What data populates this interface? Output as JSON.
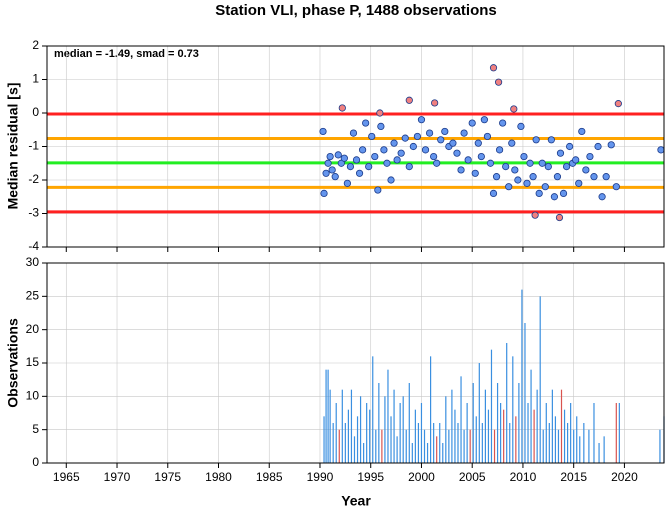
{
  "chart_data": [
    {
      "type": "scatter",
      "title": "Station VLI, phase P, 1488 observations",
      "ylabel": "Median residual [s]",
      "annotation": "median = -1.49, smad = 0.73",
      "xlim": [
        1963.1,
        2023.9
      ],
      "ylim": [
        -4,
        2
      ],
      "yticks": [
        -4,
        -3,
        -2,
        -1,
        0,
        1,
        2
      ],
      "grid": true,
      "hlines": [
        {
          "value": -0.03,
          "color": "#ff2020"
        },
        {
          "value": -0.76,
          "color": "#ffa500"
        },
        {
          "value": -1.49,
          "color": "#22ee22"
        },
        {
          "value": -2.22,
          "color": "#ffa500"
        },
        {
          "value": -2.95,
          "color": "#ff2020"
        }
      ],
      "series": [
        {
          "color": "#6495ed",
          "x": [
            1990.3,
            1990.4,
            1990.6,
            1990.8,
            1991.0,
            1991.2,
            1991.5,
            1991.8,
            1992.1,
            1992.4,
            1992.7,
            1993.0,
            1993.3,
            1993.6,
            1993.9,
            1994.2,
            1994.5,
            1994.8,
            1995.1,
            1995.4,
            1995.7,
            1996.0,
            1996.3,
            1996.6,
            1997.0,
            1997.3,
            1997.6,
            1998.0,
            1998.4,
            1998.8,
            1999.2,
            1999.6,
            2000.0,
            2000.4,
            2000.8,
            2001.2,
            2001.5,
            2001.9,
            2002.3,
            2002.7,
            2003.1,
            2003.5,
            2003.9,
            2004.2,
            2004.6,
            2005.0,
            2005.3,
            2005.6,
            2005.9,
            2006.2,
            2006.5,
            2006.8,
            2007.1,
            2007.4,
            2007.7,
            2008.0,
            2008.3,
            2008.6,
            2008.9,
            2009.2,
            2009.5,
            2009.8,
            2010.1,
            2010.4,
            2010.7,
            2011.0,
            2011.3,
            2011.6,
            2011.9,
            2012.2,
            2012.5,
            2012.8,
            2013.1,
            2013.4,
            2013.7,
            2014.0,
            2014.3,
            2014.6,
            2014.9,
            2015.2,
            2015.5,
            2015.8,
            2016.2,
            2016.6,
            2017.0,
            2017.4,
            2017.8,
            2018.2,
            2018.7,
            2019.2,
            2023.6
          ],
          "values": [
            -0.55,
            -2.4,
            -1.8,
            -1.5,
            -1.3,
            -1.7,
            -1.9,
            -1.25,
            -1.5,
            -1.35,
            -2.1,
            -1.6,
            -0.6,
            -1.4,
            -1.8,
            -1.1,
            -0.3,
            -1.6,
            -0.7,
            -1.3,
            -2.3,
            -0.4,
            -1.1,
            -1.5,
            -2.0,
            -0.9,
            -1.4,
            -1.2,
            -0.75,
            -1.6,
            -1.0,
            -0.7,
            -0.2,
            -1.1,
            -0.6,
            -1.3,
            -1.5,
            -0.8,
            -0.55,
            -1.0,
            -0.9,
            -1.2,
            -1.7,
            -0.6,
            -1.4,
            -0.3,
            -1.8,
            -0.9,
            -1.3,
            -0.2,
            -0.7,
            -1.5,
            -2.4,
            -1.9,
            -1.1,
            -0.3,
            -1.6,
            -2.2,
            -0.9,
            -1.7,
            -2.0,
            -0.4,
            -1.3,
            -2.1,
            -1.5,
            -1.9,
            -0.8,
            -2.4,
            -1.5,
            -2.2,
            -1.6,
            -0.8,
            -2.5,
            -1.9,
            -1.2,
            -2.4,
            -1.6,
            -1.0,
            -1.5,
            -1.4,
            -2.1,
            -0.55,
            -1.7,
            -1.3,
            -1.9,
            -1.0,
            -2.5,
            -1.9,
            -0.95,
            -2.2,
            -1.1
          ]
        },
        {
          "color": "#f08080",
          "x": [
            1992.2,
            1995.9,
            1998.8,
            2001.3,
            2007.1,
            2007.6,
            2009.1,
            2019.4,
            2011.2,
            2013.6
          ],
          "values": [
            0.15,
            0.0,
            0.38,
            0.3,
            1.35,
            0.92,
            0.12,
            0.28,
            -3.05,
            -3.12
          ]
        }
      ]
    },
    {
      "type": "bar",
      "ylabel": "Observations",
      "xlabel": "Year",
      "xlim": [
        1963.1,
        2023.9
      ],
      "xticks": [
        1965,
        1970,
        1975,
        1980,
        1985,
        1990,
        1995,
        2000,
        2005,
        2010,
        2015,
        2020
      ],
      "ylim": [
        0,
        30
      ],
      "yticks": [
        0,
        5,
        10,
        15,
        20,
        25,
        30
      ],
      "grid": true,
      "series": [
        {
          "color": "#3a8fe0",
          "x": [
            1990.4,
            1990.6,
            1990.8,
            1991.0,
            1991.3,
            1991.6,
            1992.2,
            1992.5,
            1992.8,
            1993.1,
            1993.4,
            1993.7,
            1994.0,
            1994.3,
            1994.6,
            1994.9,
            1995.2,
            1995.5,
            1995.8,
            1996.4,
            1996.7,
            1997.0,
            1997.3,
            1997.6,
            1997.9,
            1998.2,
            1998.5,
            1998.8,
            1999.1,
            1999.4,
            1999.7,
            2000.0,
            2000.3,
            2000.6,
            2000.9,
            2001.2,
            2001.8,
            2002.1,
            2002.4,
            2002.7,
            2003.0,
            2003.3,
            2003.6,
            2003.9,
            2004.2,
            2004.5,
            2005.1,
            2005.4,
            2005.7,
            2006.0,
            2006.3,
            2006.6,
            2006.9,
            2007.5,
            2007.8,
            2008.4,
            2008.7,
            2009.0,
            2009.6,
            2009.9,
            2010.2,
            2010.5,
            2010.8,
            2011.4,
            2011.7,
            2012.0,
            2012.3,
            2012.6,
            2012.9,
            2013.2,
            2013.5,
            2014.1,
            2014.4,
            2014.7,
            2015.0,
            2015.3,
            2015.6,
            2016.0,
            2016.5,
            2017.0,
            2017.5,
            2018.0,
            2019.5,
            2023.5,
            2023.9
          ],
          "values": [
            7,
            14,
            14,
            11,
            6,
            9,
            11,
            6,
            8,
            11,
            4,
            7,
            10,
            3,
            9,
            8,
            16,
            5,
            12,
            10,
            14,
            7,
            11,
            4,
            9,
            10,
            5,
            12,
            3,
            8,
            6,
            9,
            5,
            3,
            16,
            6,
            6,
            3,
            10,
            5,
            11,
            8,
            6,
            13,
            5,
            9,
            12,
            7,
            15,
            6,
            11,
            8,
            17,
            12,
            9,
            18,
            6,
            16,
            12,
            26,
            21,
            9,
            14,
            11,
            25,
            5,
            9,
            6,
            11,
            7,
            5,
            8,
            6,
            9,
            5,
            7,
            4,
            6,
            5,
            9,
            3,
            4,
            9,
            5,
            7
          ]
        },
        {
          "color": "#d9534f",
          "x": [
            1991.9,
            1996.1,
            2001.5,
            2004.8,
            2007.2,
            2008.1,
            2009.3,
            2011.1,
            2013.8,
            2019.2
          ],
          "values": [
            5,
            5,
            4,
            5,
            5,
            8,
            7,
            8,
            11,
            9
          ]
        }
      ]
    }
  ]
}
